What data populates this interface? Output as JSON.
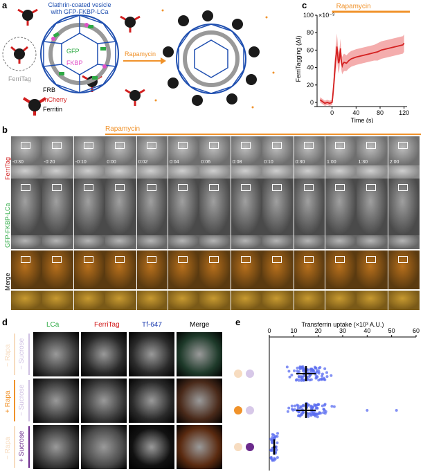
{
  "panels": {
    "a": "a",
    "b": "b",
    "c": "c",
    "d": "d",
    "e": "e"
  },
  "schematic": {
    "vesicle_title": "Clathrin-coated vesicle\nwith GFP-FKBP-LCa",
    "gfp": "GFP",
    "fkbp": "FKBP",
    "rapamycin": "Rapamycin",
    "ferritag": "FerriTag",
    "frb": "FRB",
    "mcherry": "mCherry",
    "ferritin": "Ferritin",
    "colors": {
      "clathrin": "#1f4fb0",
      "gfp": "#2eaa44",
      "fkbp": "#e050c8",
      "rapa": "#f0922a",
      "mcherry": "#d21f1f",
      "ferritin": "#1a1a1a"
    }
  },
  "chart_data": {
    "type": "line",
    "bar_label": "Rapamycin",
    "xlabel": "Time (s)",
    "ylabel": "FerriTagging (ΔI)",
    "y_multiplier": "×10⁻³",
    "xlim": [
      -25,
      125
    ],
    "ylim": [
      0,
      100
    ],
    "xticks": [
      0,
      40,
      80,
      120
    ],
    "yticks": [
      0,
      20,
      40,
      60,
      80,
      100
    ],
    "x": [
      -20,
      -16,
      -12,
      -8,
      -4,
      0,
      1,
      2,
      3,
      4,
      5,
      6,
      7,
      8,
      9,
      10,
      11,
      12,
      13,
      14,
      15,
      16,
      17,
      18,
      20,
      24,
      28,
      32,
      36,
      40,
      46,
      52,
      58,
      64,
      70,
      76,
      82,
      88,
      94,
      100,
      106,
      112,
      118,
      120
    ],
    "mean": [
      3,
      1,
      -1,
      0,
      -1,
      0,
      6,
      14,
      22,
      32,
      40,
      50,
      55,
      64,
      58,
      50,
      45,
      48,
      55,
      62,
      50,
      45,
      42,
      44,
      46,
      45,
      48,
      50,
      51,
      52,
      53,
      54,
      55,
      56,
      57,
      58,
      60,
      61,
      62,
      63,
      64,
      65,
      66,
      68
    ],
    "err": [
      3,
      3,
      3,
      3,
      3,
      3,
      5,
      8,
      10,
      12,
      14,
      15,
      15,
      15,
      14,
      13,
      12,
      11,
      11,
      11,
      10,
      10,
      10,
      10,
      10,
      9,
      9,
      9,
      9,
      9,
      9,
      9,
      9,
      9,
      9,
      10,
      10,
      10,
      10,
      10,
      10,
      10,
      10,
      10
    ],
    "colors": {
      "line": "#d42020",
      "band": "#f08a8a",
      "bar": "#f0922a"
    }
  },
  "panel_b": {
    "bar_label": "Rapamycin",
    "time_labels": [
      "-0:30",
      "-0:20",
      "-0:10",
      "0:00",
      "0:02",
      "0:04",
      "0:06",
      "0:08",
      "0:10",
      "0:30",
      "1:00",
      "1:30",
      "2:00"
    ],
    "rows": [
      "FerriTag",
      "GFP-FKBP-LCa",
      "Merge"
    ]
  },
  "panel_d": {
    "columns": [
      "LCa",
      "FerriTag",
      "Tf-647",
      "Merge"
    ],
    "row_labels": [
      {
        "rapa": "− Rapa",
        "sucrose": "− Sucrose"
      },
      {
        "rapa": "+ Rapa",
        "sucrose": "− Sucrose"
      },
      {
        "rapa": "− Rapa",
        "sucrose": "+ Sucrose"
      }
    ]
  },
  "panel_e": {
    "title": "Transferrin uptake (×10³ A.U.)",
    "xticks": [
      0,
      10,
      20,
      30,
      40,
      50,
      60
    ],
    "xlim": [
      0,
      60
    ],
    "groups": [
      {
        "rapa": false,
        "sucrose": false,
        "median": 15,
        "q1": 11,
        "q3": 19,
        "outliers": []
      },
      {
        "rapa": true,
        "sucrose": false,
        "median": 15,
        "q1": 11,
        "q3": 19,
        "outliers": [
          40,
          52
        ]
      },
      {
        "rapa": false,
        "sucrose": true,
        "median": 2,
        "q1": 1.5,
        "q3": 2.5,
        "outliers": []
      }
    ],
    "colors": {
      "dot": "#5a6cf0",
      "rapa_on": "#f0922a",
      "rapa_off": "#f7dcc0",
      "suc_on": "#6b2a8c",
      "suc_off": "#d7c8e8"
    }
  }
}
